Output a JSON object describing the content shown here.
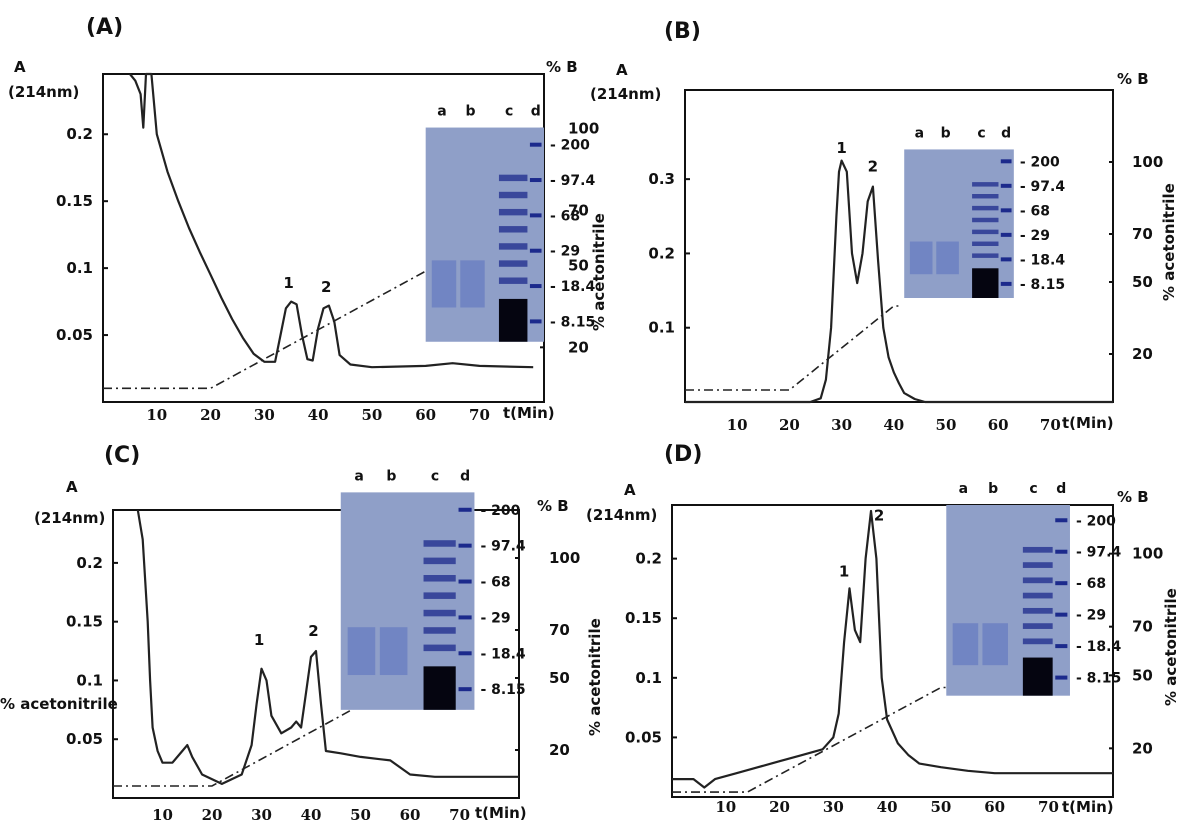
{
  "chart_data": [
    {
      "type": "line",
      "panel": "(A)",
      "ylabel": "A",
      "ylabel_unit": "(214nm)",
      "y2label": "% B",
      "y2title": "",
      "xlabel": "t(Min)",
      "y_ticks": [
        "0.05",
        "0.1",
        "0.15",
        "0.2"
      ],
      "y2_ticks": [
        "20",
        "50",
        "70",
        "100"
      ],
      "x_ticks": [
        "10",
        "20",
        "30",
        "40",
        "50",
        "60",
        "70"
      ],
      "xlim": [
        0,
        82
      ],
      "ylim": [
        0,
        0.245
      ],
      "y2lim": [
        0,
        120
      ],
      "series": [
        {
          "x": [
            5,
            6,
            7,
            7.5,
            8,
            9,
            10,
            12,
            14,
            16,
            18,
            20,
            22,
            24,
            26,
            28,
            30,
            32,
            33,
            34,
            35,
            36,
            37,
            38,
            39,
            40,
            41,
            42,
            43,
            44,
            46,
            50,
            60,
            65,
            70,
            80
          ],
          "y": [
            0.245,
            0.24,
            0.23,
            0.205,
            0.245,
            0.245,
            0.2,
            0.172,
            0.15,
            0.13,
            0.112,
            0.095,
            0.078,
            0.062,
            0.048,
            0.036,
            0.03,
            0.03,
            0.05,
            0.07,
            0.075,
            0.073,
            0.05,
            0.032,
            0.031,
            0.055,
            0.07,
            0.072,
            0.06,
            0.035,
            0.028,
            0.026,
            0.027,
            0.029,
            0.027,
            0.026
          ]
        }
      ],
      "gradient": {
        "x": [
          0,
          20,
          62,
          80
        ],
        "y": [
          5,
          5,
          50,
          50
        ]
      },
      "peak_labels": [
        {
          "label": "1",
          "x": 34.5,
          "y": 0.085
        },
        {
          "label": "2",
          "x": 41.5,
          "y": 0.082
        }
      ],
      "gel": {
        "lanes": [
          "a",
          "b",
          "c",
          "d"
        ],
        "markers": [
          "200",
          "97.4",
          "68",
          "29",
          "18.4",
          "8.15"
        ],
        "x_range": [
          60,
          82
        ],
        "y_range": [
          0.045,
          0.205
        ]
      }
    },
    {
      "type": "line",
      "panel": "(B)",
      "ylabel": "A",
      "ylabel_unit": "(214nm)",
      "y2label": "% B",
      "y2title": "% acetonitrile",
      "xlabel": "t(Min)",
      "y_ticks": [
        "0.1",
        "0.2",
        "0.3"
      ],
      "y2_ticks": [
        "20",
        "50",
        "70",
        "100"
      ],
      "x_ticks": [
        "10",
        "20",
        "30",
        "40",
        "50",
        "60",
        "70"
      ],
      "xlim": [
        0,
        82
      ],
      "ylim": [
        0,
        0.42
      ],
      "y2lim": [
        0,
        130
      ],
      "series": [
        {
          "x": [
            0,
            24,
            26,
            27,
            28,
            29,
            29.5,
            30,
            31,
            32,
            33,
            34,
            35,
            36,
            37,
            38,
            39,
            40,
            41,
            42,
            44,
            46,
            50,
            82
          ],
          "y": [
            0,
            0,
            0.005,
            0.03,
            0.1,
            0.25,
            0.31,
            0.325,
            0.31,
            0.2,
            0.16,
            0.2,
            0.27,
            0.29,
            0.19,
            0.1,
            0.06,
            0.04,
            0.025,
            0.012,
            0.004,
            0,
            0,
            0
          ]
        }
      ],
      "gradient": {
        "x": [
          0,
          20,
          40,
          41
        ],
        "y": [
          5,
          5,
          40,
          40
        ]
      },
      "peak_labels": [
        {
          "label": "1",
          "x": 30,
          "y": 0.335
        },
        {
          "label": "2",
          "x": 36,
          "y": 0.31
        }
      ],
      "gel": {
        "lanes": [
          "a",
          "b",
          "c",
          "d"
        ],
        "markers": [
          "200",
          "97.4",
          "68",
          "29",
          "18.4",
          "8.15"
        ],
        "x_range": [
          42,
          63
        ],
        "y_range": [
          0.14,
          0.34
        ]
      }
    },
    {
      "type": "line",
      "panel": "(C)",
      "ylabel": "A",
      "ylabel_unit": "(214nm)",
      "y2label": "% B",
      "y2title": "% acetonitrile",
      "xlabel": "t(Min)",
      "y_ticks": [
        "0.05",
        "0.1",
        "0.15",
        "0.2"
      ],
      "y2_ticks": [
        "20",
        "50",
        "70",
        "100"
      ],
      "x_ticks": [
        "10",
        "20",
        "30",
        "40",
        "50",
        "60",
        "70"
      ],
      "xlim": [
        0,
        82
      ],
      "ylim": [
        0,
        0.245
      ],
      "y2lim": [
        0,
        120
      ],
      "series": [
        {
          "x": [
            5,
            6,
            7,
            7.5,
            8,
            9,
            10,
            12,
            14,
            15,
            16,
            18,
            22,
            26,
            28,
            29,
            30,
            31,
            32,
            34,
            36,
            37,
            38,
            39,
            40,
            41,
            42,
            43,
            46,
            50,
            56,
            60,
            65,
            70,
            82
          ],
          "y": [
            0.245,
            0.22,
            0.15,
            0.1,
            0.06,
            0.04,
            0.03,
            0.03,
            0.04,
            0.045,
            0.035,
            0.02,
            0.012,
            0.02,
            0.045,
            0.08,
            0.11,
            0.1,
            0.07,
            0.055,
            0.06,
            0.065,
            0.06,
            0.09,
            0.12,
            0.125,
            0.08,
            0.04,
            0.038,
            0.035,
            0.032,
            0.02,
            0.018,
            0.018,
            0.018
          ]
        }
      ],
      "gradient": {
        "x": [
          0,
          20,
          60,
          61
        ],
        "y": [
          5,
          5,
          50,
          50
        ]
      },
      "peak_labels": [
        {
          "label": "1",
          "x": 29.5,
          "y": 0.13
        },
        {
          "label": "2",
          "x": 40.5,
          "y": 0.138
        }
      ],
      "gel": {
        "lanes": [
          "a",
          "b",
          "c",
          "d"
        ],
        "markers": [
          "200",
          "97.4",
          "68",
          "29",
          "18.4",
          "8.15"
        ],
        "x_range": [
          46,
          73
        ],
        "y_range": [
          0.075,
          0.26
        ]
      }
    },
    {
      "type": "line",
      "panel": "(D)",
      "ylabel": "A",
      "ylabel_unit": "(214nm)",
      "y2label": "% B",
      "y2title": "% acetonitrile",
      "xlabel": "t(Min)",
      "y_ticks": [
        "0.05",
        "0.1",
        "0.15",
        "0.2"
      ],
      "y2_ticks": [
        "20",
        "50",
        "70",
        "100"
      ],
      "x_ticks": [
        "10",
        "20",
        "30",
        "40",
        "50",
        "60",
        "70"
      ],
      "xlim": [
        0,
        82
      ],
      "ylim": [
        0,
        0.245
      ],
      "y2lim": [
        0,
        120
      ],
      "series": [
        {
          "x": [
            0,
            4,
            6,
            8,
            12,
            16,
            20,
            24,
            28,
            30,
            31,
            32,
            33,
            34,
            35,
            36,
            37,
            38,
            39,
            40,
            42,
            44,
            46,
            50,
            55,
            60,
            70,
            82
          ],
          "y": [
            0.015,
            0.015,
            0.008,
            0.015,
            0.02,
            0.025,
            0.03,
            0.035,
            0.04,
            0.05,
            0.07,
            0.13,
            0.175,
            0.14,
            0.13,
            0.2,
            0.24,
            0.2,
            0.1,
            0.065,
            0.045,
            0.035,
            0.028,
            0.025,
            0.022,
            0.02,
            0.02,
            0.02
          ]
        }
      ],
      "gradient": {
        "x": [
          0,
          14,
          50,
          51
        ],
        "y": [
          2,
          2,
          45,
          45
        ]
      },
      "peak_labels": [
        {
          "label": "1",
          "x": 32,
          "y": 0.185
        },
        {
          "label": "2",
          "x": 38.5,
          "y": 0.232
        }
      ],
      "gel": {
        "lanes": [
          "a",
          "b",
          "c",
          "d"
        ],
        "markers": [
          "200",
          "97.4",
          "68",
          "29",
          "18.4",
          "8.15"
        ],
        "x_range": [
          51,
          74
        ],
        "y_range": [
          0.085,
          0.245
        ]
      }
    }
  ],
  "colors": {
    "trace": "#222222",
    "trace_light": "#444444",
    "gradient": "#222222",
    "gel_bg": "#8f9fc8",
    "gel_band": "#1c2a8c",
    "gel_dark": "#050510"
  }
}
